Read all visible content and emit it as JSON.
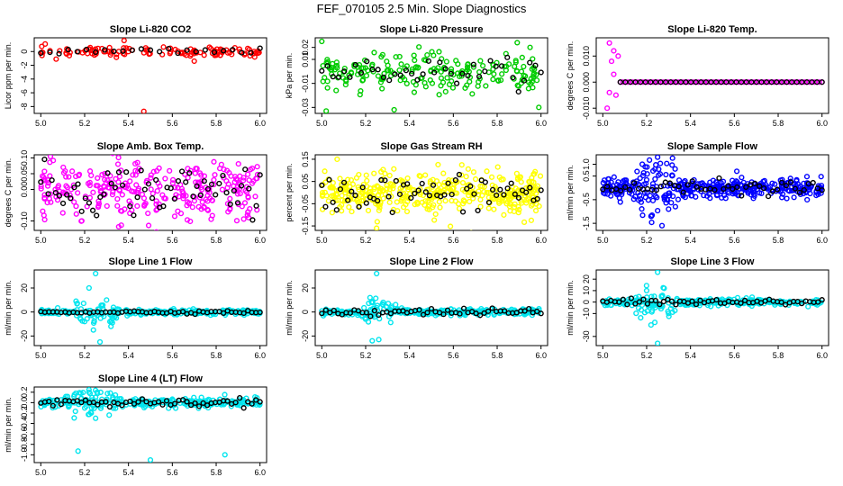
{
  "figure_title": "FEF_070105  2.5 Min. Slope Diagnostics",
  "colors": {
    "ref": "#000000"
  },
  "chart_data": [
    {
      "type": "scatter",
      "title": "Slope Li-820 CO2",
      "ylabel": "Licor ppm per min.",
      "xlim": [
        4.97,
        6.03
      ],
      "ylim": [
        -9,
        2
      ],
      "xticks": [
        "5.0",
        "5.2",
        "5.4",
        "5.6",
        "5.8",
        "6.0"
      ],
      "yticks": [
        "-8",
        "-6",
        "-4",
        "-2",
        "0"
      ],
      "ytick_values": [
        -8,
        -6,
        -4,
        -2,
        0
      ],
      "color": "#ff0000",
      "n_points": 110,
      "spread": 0.35,
      "bias": 0,
      "outliers": [
        [
          5.47,
          -8.7
        ],
        [
          5.38,
          1.6
        ],
        [
          5.02,
          1.1
        ],
        [
          5.07,
          -1.1
        ],
        [
          5.7,
          -1.4
        ],
        [
          5.13,
          -0.6
        ]
      ],
      "ref_points": 25,
      "ref_spread": 0.25
    },
    {
      "type": "scatter",
      "title": "Slope Li-820 Pressure",
      "ylabel": "kPa per min.",
      "xlim": [
        4.97,
        6.03
      ],
      "ylim": [
        -0.035,
        0.028
      ],
      "xticks": [
        "5.0",
        "5.2",
        "5.4",
        "5.6",
        "5.8",
        "6.0"
      ],
      "yticks": [
        "-0.03",
        "-0.01",
        "0.01",
        "0.02"
      ],
      "ytick_values": [
        -0.03,
        -0.01,
        0.01,
        0.02
      ],
      "color": "#00cc00",
      "n_points": 200,
      "spread": 0.008,
      "bias": 0,
      "outliers": [
        [
          5.02,
          -0.033
        ],
        [
          5.33,
          -0.032
        ],
        [
          5.99,
          -0.03
        ],
        [
          5.0,
          0.025
        ],
        [
          5.95,
          0.02
        ]
      ],
      "ref_points": 40,
      "ref_spread": 0.005
    },
    {
      "type": "scatter",
      "title": "Slope Li-820 Temp.",
      "ylabel": "degrees C per min.",
      "xlim": [
        4.97,
        6.03
      ],
      "ylim": [
        -0.012,
        0.017
      ],
      "xticks": [
        "5.0",
        "5.2",
        "5.4",
        "5.6",
        "5.8",
        "6.0"
      ],
      "yticks": [
        "-0.010",
        "0.000",
        "0.010"
      ],
      "ytick_values": [
        -0.01,
        0.0,
        0.01
      ],
      "color": "#ff00ff",
      "n_points": 0,
      "spread": 0,
      "bias": 0,
      "outliers": [
        [
          5.02,
          -0.01
        ],
        [
          5.03,
          0.015
        ],
        [
          5.05,
          0.012
        ],
        [
          5.06,
          -0.005
        ],
        [
          5.04,
          0.008
        ],
        [
          5.07,
          0.01
        ],
        [
          5.03,
          -0.004
        ],
        [
          5.05,
          0.003
        ]
      ],
      "ref_points": 0,
      "ref_spread": 0,
      "flat_series": true
    },
    {
      "type": "scatter",
      "title": "Slope Amb. Box Temp.",
      "ylabel": "degrees C per min.",
      "xlim": [
        4.97,
        6.03
      ],
      "ylim": [
        -0.13,
        0.11
      ],
      "xticks": [
        "5.0",
        "5.2",
        "5.4",
        "5.6",
        "5.8",
        "6.0"
      ],
      "yticks": [
        "-0.10",
        "0.00",
        "0.05",
        "0.10"
      ],
      "ytick_values": [
        -0.1,
        0.0,
        0.05,
        0.1
      ],
      "color": "#ff00ff",
      "n_points": 300,
      "spread": 0.045,
      "bias": 0,
      "outliers": [],
      "ref_points": 60,
      "ref_spread": 0.04
    },
    {
      "type": "scatter",
      "title": "Slope Gas Stream RH",
      "ylabel": "percent per min.",
      "xlim": [
        4.97,
        6.03
      ],
      "ylim": [
        -0.17,
        0.17
      ],
      "xticks": [
        "5.0",
        "5.2",
        "5.4",
        "5.6",
        "5.8",
        "6.0"
      ],
      "yticks": [
        "-0.15",
        "-0.05",
        "0.05",
        "0.15"
      ],
      "ytick_values": [
        -0.15,
        -0.05,
        0.05,
        0.15
      ],
      "color": "#ffff00",
      "n_points": 400,
      "spread": 0.045,
      "bias": 0,
      "outliers": [
        [
          5.07,
          0.15
        ],
        [
          5.25,
          -0.16
        ]
      ],
      "ref_points": 60,
      "ref_spread": 0.04
    },
    {
      "type": "scatter",
      "title": "Slope Sample Flow",
      "ylabel": "ml/min per min.",
      "xlim": [
        4.97,
        6.03
      ],
      "ylim": [
        -1.8,
        1.4
      ],
      "xticks": [
        "5.0",
        "5.2",
        "5.4",
        "5.6",
        "5.8",
        "6.0"
      ],
      "yticks": [
        "-1.5",
        "-0.5",
        "0.5",
        "1.0"
      ],
      "ytick_values": [
        -1.5,
        -0.5,
        0.5,
        1.0
      ],
      "color": "#0000ff",
      "n_points": 400,
      "spread": 0.2,
      "bias": 0,
      "outliers": [
        [
          5.25,
          1.3
        ],
        [
          5.22,
          -1.2
        ],
        [
          5.27,
          -1.6
        ],
        [
          5.3,
          -0.9
        ],
        [
          5.08,
          -0.6
        ],
        [
          5.18,
          1.0
        ],
        [
          5.33,
          0.8
        ]
      ],
      "ref_points": 50,
      "ref_spread": 0.15
    },
    {
      "type": "scatter",
      "title": "Slope Line 1 Flow",
      "ylabel": "ml/min per min.",
      "xlim": [
        4.97,
        6.03
      ],
      "ylim": [
        -28,
        35
      ],
      "xticks": [
        "5.0",
        "5.2",
        "5.4",
        "5.6",
        "5.8",
        "6.0"
      ],
      "yticks": [
        "-20",
        "0",
        "20"
      ],
      "ytick_values": [
        -20,
        0,
        20
      ],
      "color": "#00e5ee",
      "n_points": 300,
      "spread": 1.0,
      "bias": 0,
      "outliers": [
        [
          5.25,
          32
        ],
        [
          5.22,
          20
        ],
        [
          5.24,
          -15
        ],
        [
          5.27,
          -25
        ],
        [
          5.3,
          10
        ],
        [
          5.2,
          -8
        ],
        [
          5.32,
          -12
        ],
        [
          5.28,
          5
        ]
      ],
      "ref_points": 55,
      "ref_spread": 0.6
    },
    {
      "type": "scatter",
      "title": "Slope Line 2 Flow",
      "ylabel": "ml/min per min.",
      "xlim": [
        4.97,
        6.03
      ],
      "ylim": [
        -28,
        35
      ],
      "xticks": [
        "5.0",
        "5.2",
        "5.4",
        "5.6",
        "5.8",
        "6.0"
      ],
      "yticks": [
        "-20",
        "0",
        "20"
      ],
      "ytick_values": [
        -20,
        0,
        20
      ],
      "color": "#00e5ee",
      "n_points": 300,
      "spread": 1.2,
      "bias": 0,
      "outliers": [
        [
          5.25,
          32
        ],
        [
          5.23,
          -24
        ],
        [
          5.26,
          -23
        ],
        [
          5.22,
          12
        ],
        [
          5.28,
          8
        ],
        [
          5.2,
          -6
        ]
      ],
      "ref_points": 55,
      "ref_spread": 1.5
    },
    {
      "type": "scatter",
      "title": "Slope Line 3 Flow",
      "ylabel": "ml/min per min.",
      "xlim": [
        4.97,
        6.03
      ],
      "ylim": [
        -38,
        28
      ],
      "xticks": [
        "5.0",
        "5.2",
        "5.4",
        "5.6",
        "5.8",
        "6.0"
      ],
      "yticks": [
        "-30",
        "-10",
        "0",
        "10",
        "20"
      ],
      "ytick_values": [
        -30,
        -10,
        0,
        10,
        20
      ],
      "color": "#00e5ee",
      "n_points": 300,
      "spread": 1.5,
      "bias": 0,
      "outliers": [
        [
          5.25,
          26
        ],
        [
          5.25,
          -36
        ],
        [
          5.22,
          -20
        ],
        [
          5.28,
          12
        ],
        [
          5.2,
          10
        ],
        [
          5.3,
          -10
        ]
      ],
      "ref_points": 55,
      "ref_spread": 1.5
    },
    {
      "type": "scatter",
      "title": "Slope Line 4 (LT) Flow",
      "ylabel": "ml/min per min.",
      "xlim": [
        4.97,
        6.03
      ],
      "ylim": [
        -1.15,
        0.3
      ],
      "xticks": [
        "5.0",
        "5.2",
        "5.4",
        "5.6",
        "5.8",
        "6.0"
      ],
      "yticks": [
        "-1.0",
        "-0.8",
        "-0.6",
        "-0.4",
        "-0.2",
        "0.0",
        "0.2"
      ],
      "ytick_values": [
        -1.0,
        -0.8,
        -0.6,
        -0.4,
        -0.2,
        0.0,
        0.2
      ],
      "color": "#00e5ee",
      "n_points": 300,
      "spread": 0.04,
      "bias": 0,
      "outliers": [
        [
          5.17,
          -0.93
        ],
        [
          5.5,
          -1.1
        ],
        [
          5.84,
          -1.0
        ],
        [
          5.23,
          -0.2
        ],
        [
          5.22,
          0.2
        ],
        [
          5.25,
          -0.3
        ]
      ],
      "ref_points": 55,
      "ref_spread": 0.04
    }
  ]
}
